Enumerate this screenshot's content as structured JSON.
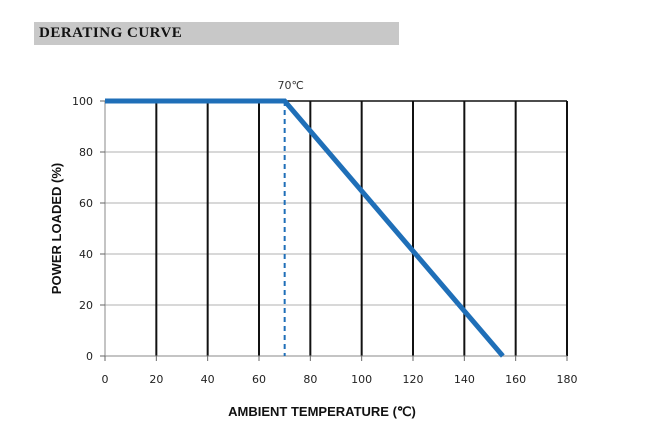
{
  "chart_data": {
    "type": "line",
    "title": "DERATING CURVE",
    "xlabel": "AMBIENT  TEMPERATURE (℃)",
    "ylabel": "POWER LOADED (%)",
    "xlim": [
      0,
      180
    ],
    "ylim": [
      0,
      100
    ],
    "xticks": [
      0,
      20,
      40,
      60,
      80,
      100,
      120,
      140,
      160,
      180
    ],
    "yticks": [
      0,
      20,
      40,
      60,
      80,
      100
    ],
    "grid": true,
    "series": [
      {
        "x": [
          0,
          70,
          155
        ],
        "y": [
          100,
          100,
          0
        ],
        "color": "#1f6fb8"
      }
    ],
    "annotations": [
      {
        "text": "70℃",
        "x": 70,
        "style": "dashed-vertical-line",
        "color": "#1f6fb8"
      }
    ]
  }
}
